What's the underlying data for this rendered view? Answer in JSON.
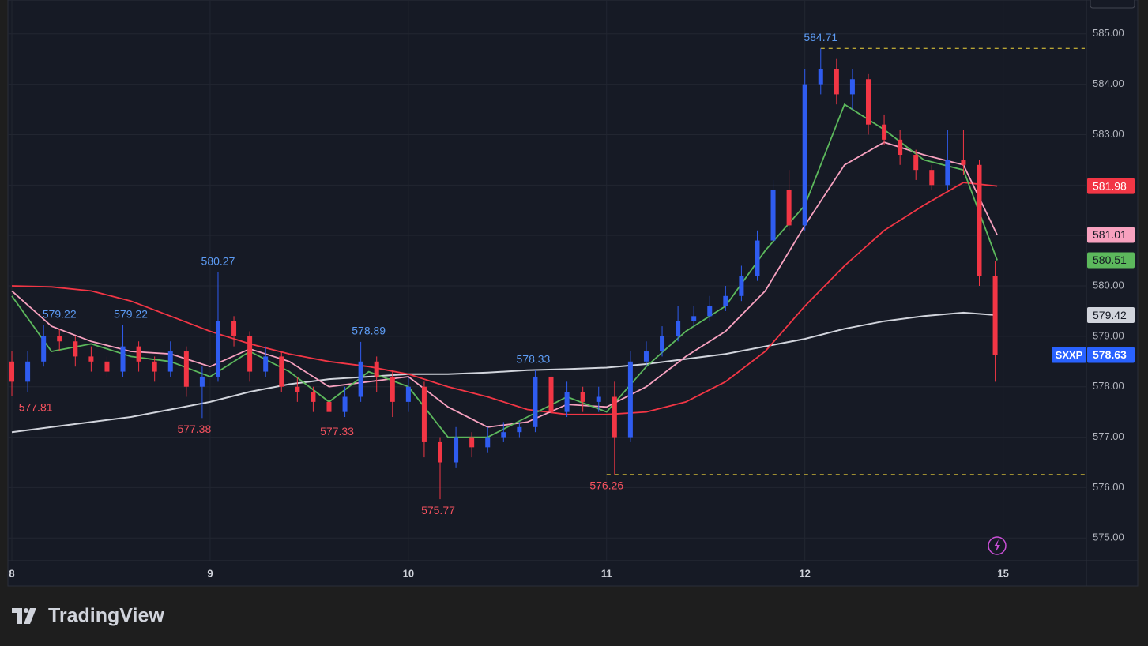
{
  "chart_data": {
    "type": "candlestick",
    "symbol": "SXXP",
    "up_color": "#2f5cf0",
    "down_color": "#f23645",
    "grid": true,
    "xlim": [
      -0.02,
      5.42
    ],
    "xticks": [
      {
        "value": 0,
        "label": "8"
      },
      {
        "value": 1,
        "label": "9"
      },
      {
        "value": 2,
        "label": "10"
      },
      {
        "value": 3,
        "label": "11"
      },
      {
        "value": 4,
        "label": "12"
      },
      {
        "value": 5,
        "label": "15"
      }
    ],
    "ylim": [
      574.55,
      585.67
    ],
    "yticks": [
      {
        "value": 575,
        "label": "575.00"
      },
      {
        "value": 576,
        "label": "576.00"
      },
      {
        "value": 577,
        "label": "577.00"
      },
      {
        "value": 578,
        "label": "578.00"
      },
      {
        "value": 579,
        "label": "579.00"
      },
      {
        "value": 580,
        "label": "580.00"
      },
      {
        "value": 581,
        "label": "581.00"
      },
      {
        "value": 582,
        "label": "582.00"
      },
      {
        "value": 583,
        "label": "583.00"
      },
      {
        "value": 584,
        "label": "584.00"
      },
      {
        "value": 585,
        "label": "585.00"
      }
    ],
    "x": [
      0,
      0.08,
      0.16,
      0.24,
      0.32,
      0.4,
      0.48,
      0.56,
      0.64,
      0.72,
      0.8,
      0.88,
      0.96,
      1.04,
      1.12,
      1.2,
      1.28,
      1.36,
      1.44,
      1.52,
      1.6,
      1.68,
      1.76,
      1.84,
      1.92,
      2.0,
      2.08,
      2.16,
      2.24,
      2.32,
      2.4,
      2.48,
      2.56,
      2.64,
      2.72,
      2.8,
      2.88,
      2.96,
      3.04,
      3.12,
      3.2,
      3.28,
      3.36,
      3.44,
      3.52,
      3.6,
      3.68,
      3.76,
      3.84,
      3.92,
      4.0,
      4.08,
      4.16,
      4.24,
      4.32,
      4.4,
      4.48,
      4.56,
      4.64,
      4.72,
      4.8,
      4.88,
      4.96
    ],
    "open": [
      578.5,
      578.1,
      578.5,
      579.0,
      578.9,
      578.6,
      578.5,
      578.3,
      578.8,
      578.5,
      578.3,
      578.7,
      578.0,
      578.2,
      579.3,
      579.0,
      578.3,
      578.6,
      578.0,
      577.9,
      577.7,
      577.5,
      577.8,
      578.5,
      578.2,
      577.7,
      578.0,
      576.9,
      576.5,
      577.0,
      576.8,
      577.0,
      577.1,
      577.2,
      578.2,
      577.5,
      577.9,
      577.7,
      577.8,
      577.0,
      578.5,
      578.7,
      579.0,
      579.3,
      579.4,
      579.6,
      579.8,
      580.2,
      580.9,
      581.9,
      581.2,
      584.0,
      584.3,
      583.8,
      584.1,
      583.2,
      582.9,
      582.6,
      582.3,
      582.0,
      582.5,
      582.4,
      580.2
    ],
    "high": [
      578.7,
      578.7,
      579.22,
      579.15,
      579.0,
      578.8,
      578.6,
      579.22,
      578.9,
      578.6,
      578.9,
      578.8,
      578.4,
      580.27,
      579.4,
      579.1,
      578.8,
      578.7,
      578.2,
      578.0,
      577.8,
      578.0,
      578.89,
      578.6,
      578.3,
      578.2,
      578.1,
      577.0,
      577.2,
      577.1,
      577.2,
      577.3,
      577.3,
      578.33,
      578.3,
      578.1,
      578.0,
      578.0,
      578.1,
      578.7,
      578.9,
      579.2,
      579.6,
      579.6,
      579.8,
      580.0,
      580.4,
      581.1,
      582.1,
      582.3,
      584.3,
      584.71,
      584.5,
      584.3,
      584.2,
      583.4,
      583.1,
      582.7,
      582.4,
      583.1,
      583.1,
      582.5,
      580.5
    ],
    "low": [
      577.81,
      577.9,
      578.4,
      578.7,
      578.4,
      578.3,
      578.2,
      578.2,
      578.3,
      578.1,
      578.2,
      577.8,
      577.38,
      578.1,
      578.8,
      578.1,
      578.2,
      577.9,
      577.7,
      577.5,
      577.33,
      577.4,
      577.7,
      577.9,
      577.4,
      577.5,
      576.6,
      575.77,
      576.4,
      576.6,
      576.7,
      576.9,
      577.0,
      577.1,
      577.4,
      577.4,
      577.5,
      577.5,
      576.26,
      576.9,
      578.4,
      578.6,
      578.9,
      579.2,
      579.3,
      579.5,
      579.7,
      580.1,
      580.8,
      581.1,
      581.1,
      583.8,
      583.6,
      583.5,
      583.0,
      582.8,
      582.4,
      582.1,
      581.9,
      581.9,
      582.2,
      580.0,
      578.1
    ],
    "close": [
      578.1,
      578.5,
      579.0,
      578.9,
      578.6,
      578.5,
      578.3,
      578.8,
      578.5,
      578.3,
      578.7,
      578.0,
      578.2,
      579.3,
      579.0,
      578.3,
      578.6,
      578.0,
      577.9,
      577.7,
      577.5,
      577.8,
      578.5,
      578.2,
      577.7,
      578.0,
      576.9,
      576.5,
      577.0,
      576.8,
      577.0,
      577.1,
      577.2,
      578.2,
      577.5,
      577.9,
      577.7,
      577.8,
      577.0,
      578.5,
      578.7,
      579.0,
      579.3,
      579.4,
      579.6,
      579.8,
      580.2,
      580.9,
      581.9,
      581.2,
      584.0,
      584.3,
      583.8,
      584.1,
      583.2,
      582.9,
      582.6,
      582.3,
      582.0,
      582.5,
      582.4,
      580.2,
      578.63
    ],
    "ma_x": [
      0,
      0.2,
      0.4,
      0.6,
      0.8,
      1.0,
      1.2,
      1.4,
      1.6,
      1.8,
      2.0,
      2.2,
      2.4,
      2.6,
      2.8,
      3.0,
      3.2,
      3.4,
      3.6,
      3.8,
      4.0,
      4.2,
      4.4,
      4.6,
      4.8,
      4.97
    ],
    "moving_averages": [
      {
        "color": "#d1d4dc",
        "label_text": "#131722",
        "values": [
          577.1,
          577.2,
          577.3,
          577.4,
          577.55,
          577.7,
          577.9,
          578.05,
          578.15,
          578.2,
          578.25,
          578.25,
          578.28,
          578.33,
          578.35,
          578.38,
          578.45,
          578.55,
          578.65,
          578.8,
          578.95,
          579.15,
          579.3,
          579.4,
          579.47,
          579.42
        ]
      },
      {
        "color": "#f23645",
        "label_text": "#ffffff",
        "values": [
          580.0,
          579.98,
          579.9,
          579.7,
          579.4,
          579.1,
          578.85,
          578.65,
          578.5,
          578.4,
          578.25,
          578.0,
          577.8,
          577.55,
          577.45,
          577.45,
          577.5,
          577.7,
          578.1,
          578.7,
          579.6,
          580.4,
          581.1,
          581.6,
          582.05,
          581.98
        ]
      },
      {
        "color": "#f7a1bf",
        "label_text": "#131722",
        "values": [
          579.9,
          579.2,
          578.9,
          578.7,
          578.65,
          578.4,
          578.75,
          578.5,
          578.0,
          578.1,
          578.2,
          577.6,
          577.2,
          577.3,
          577.65,
          577.6,
          578.0,
          578.6,
          579.1,
          579.9,
          581.2,
          582.4,
          582.85,
          582.6,
          582.4,
          581.01
        ]
      },
      {
        "color": "#5cb85c",
        "label_text": "#131722",
        "values": [
          579.8,
          578.7,
          578.85,
          578.6,
          578.5,
          578.2,
          578.7,
          578.3,
          577.7,
          578.3,
          578.0,
          577.0,
          577.0,
          577.4,
          577.8,
          577.5,
          578.4,
          579.1,
          579.6,
          580.7,
          581.6,
          583.6,
          583.1,
          582.5,
          582.3,
          580.51
        ]
      }
    ],
    "annotations": [
      {
        "x": 0.12,
        "y": 577.81,
        "position": "below",
        "color": "#f7525f"
      },
      {
        "x": 0.24,
        "y": 579.22,
        "position": "above",
        "color": "#5d9cf5"
      },
      {
        "x": 0.6,
        "y": 579.22,
        "position": "above",
        "color": "#5d9cf5"
      },
      {
        "x": 0.92,
        "y": 577.38,
        "position": "below",
        "color": "#f7525f"
      },
      {
        "x": 1.04,
        "y": 580.27,
        "position": "above",
        "color": "#5d9cf5"
      },
      {
        "x": 1.64,
        "y": 577.33,
        "position": "below",
        "color": "#f7525f"
      },
      {
        "x": 1.8,
        "y": 578.89,
        "position": "above",
        "color": "#5d9cf5"
      },
      {
        "x": 2.15,
        "y": 575.77,
        "position": "below",
        "color": "#f7525f"
      },
      {
        "x": 2.63,
        "y": 578.33,
        "position": "above",
        "color": "#5d9cf5"
      },
      {
        "x": 3.0,
        "y": 576.26,
        "position": "below",
        "color": "#f7525f"
      },
      {
        "x": 4.08,
        "y": 584.71,
        "position": "above",
        "color": "#5d9cf5"
      }
    ],
    "level_lines": [
      {
        "x": 4.08,
        "y": 584.71,
        "color": "#f0d43a"
      },
      {
        "x": 3.0,
        "y": 576.26,
        "color": "#f0d43a"
      }
    ]
  },
  "brand": "TradingView"
}
